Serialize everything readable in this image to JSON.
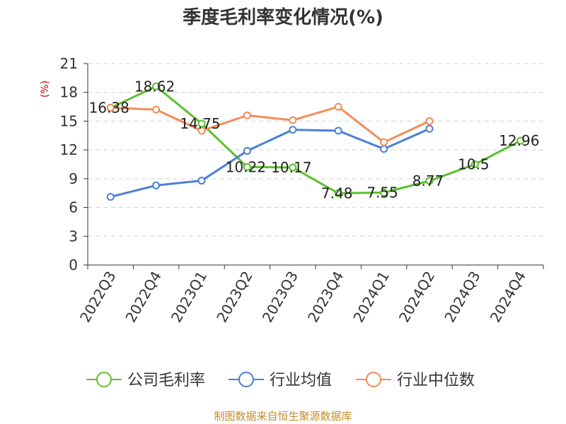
{
  "chart_data": {
    "type": "line",
    "title": "季度毛利率变化情况(%)",
    "ylabel": "(%)",
    "ylim": [
      0,
      21
    ],
    "yticks": [
      0,
      3,
      6,
      9,
      12,
      15,
      18,
      21
    ],
    "grid": true,
    "legend_position": "bottom",
    "categories": [
      "2022Q3",
      "2022Q4",
      "2023Q1",
      "2023Q2",
      "2023Q3",
      "2023Q4",
      "2024Q1",
      "2024Q2",
      "2024Q3",
      "2024Q4"
    ],
    "series": [
      {
        "name": "公司毛利率",
        "color": "#5ac02b",
        "values": [
          16.38,
          18.62,
          14.75,
          10.22,
          10.17,
          7.48,
          7.55,
          8.77,
          10.5,
          12.96
        ],
        "labels": [
          "16.38",
          "18.62",
          "14.75",
          "10.22",
          "10.17",
          "7.48",
          "7.55",
          "8.77",
          "10.5",
          "12.96"
        ]
      },
      {
        "name": "行业均值",
        "color": "#4a7fd6",
        "values": [
          7.1,
          8.3,
          8.8,
          11.9,
          14.1,
          14.0,
          12.1,
          14.2,
          null,
          null
        ]
      },
      {
        "name": "行业中位数",
        "color": "#f28c5a",
        "values": [
          16.4,
          16.2,
          14.0,
          15.6,
          15.1,
          16.5,
          12.8,
          15.0,
          null,
          null
        ]
      }
    ]
  },
  "source": "制图数据来自恒生聚源数据库"
}
